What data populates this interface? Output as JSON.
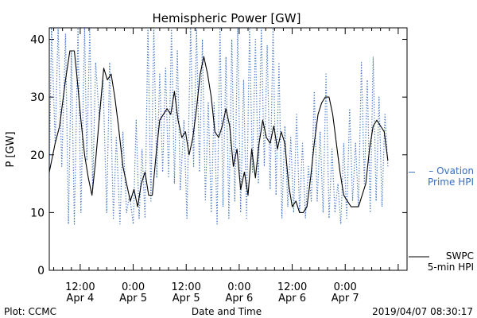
{
  "chart_data": {
    "type": "line",
    "title": "Hemispheric Power [GW]",
    "xlabel": "Date and Time",
    "ylabel": "P [GW]",
    "ylim": [
      0,
      42
    ],
    "xlim": [
      "2019-04-04 05:00",
      "2019-04-07 14:00"
    ],
    "yticks": [
      0,
      10,
      20,
      30,
      40
    ],
    "xticks": [
      {
        "at": "2019-04-04 12:00",
        "time": "12:00",
        "date": "Apr 4"
      },
      {
        "at": "2019-04-05 00:00",
        "time": "0:00",
        "date": "Apr 5"
      },
      {
        "at": "2019-04-05 12:00",
        "time": "12:00",
        "date": "Apr 5"
      },
      {
        "at": "2019-04-06 00:00",
        "time": "0:00",
        "date": "Apr 6"
      },
      {
        "at": "2019-04-06 12:00",
        "time": "12:00",
        "date": "Apr 6"
      },
      {
        "at": "2019-04-07 00:00",
        "time": "0:00",
        "date": "Apr 7"
      }
    ],
    "grid": false,
    "legend_position": "right",
    "footer_left": "Plot: CCMC",
    "footer_right": "2019/04/07 08:30:17",
    "series": [
      {
        "name": "SWPC 5-min HPI",
        "legend_lines": [
          "SWPC",
          "5-min HPI"
        ],
        "color": "#000000",
        "style": "solid",
        "points": [
          [
            "2019-04-04 05:00",
            17
          ],
          [
            "2019-04-04 06:20",
            22
          ],
          [
            "2019-04-04 07:20",
            25
          ],
          [
            "2019-04-04 08:40",
            33
          ],
          [
            "2019-04-04 09:40",
            38
          ],
          [
            "2019-04-04 10:40",
            38
          ],
          [
            "2019-04-04 11:20",
            33
          ],
          [
            "2019-04-04 12:10",
            26
          ],
          [
            "2019-04-04 13:00",
            20
          ],
          [
            "2019-04-04 13:50",
            16
          ],
          [
            "2019-04-04 14:40",
            13
          ],
          [
            "2019-04-04 15:30",
            19
          ],
          [
            "2019-04-04 16:30",
            28
          ],
          [
            "2019-04-04 17:20",
            35
          ],
          [
            "2019-04-04 18:10",
            33
          ],
          [
            "2019-04-04 19:00",
            34
          ],
          [
            "2019-04-04 19:50",
            30
          ],
          [
            "2019-04-04 20:40",
            25
          ],
          [
            "2019-04-04 21:40",
            18
          ],
          [
            "2019-04-04 22:30",
            15
          ],
          [
            "2019-04-04 23:20",
            12
          ],
          [
            "2019-04-05 00:10",
            14
          ],
          [
            "2019-04-05 01:00",
            11
          ],
          [
            "2019-04-05 01:50",
            15
          ],
          [
            "2019-04-05 02:40",
            17
          ],
          [
            "2019-04-05 03:30",
            13
          ],
          [
            "2019-04-05 04:20",
            13
          ],
          [
            "2019-04-05 05:10",
            20
          ],
          [
            "2019-04-05 06:00",
            26
          ],
          [
            "2019-04-05 06:50",
            27
          ],
          [
            "2019-04-05 07:40",
            28
          ],
          [
            "2019-04-05 08:30",
            27
          ],
          [
            "2019-04-05 09:20",
            31
          ],
          [
            "2019-04-05 10:10",
            26
          ],
          [
            "2019-04-05 11:00",
            23
          ],
          [
            "2019-04-05 11:50",
            24
          ],
          [
            "2019-04-05 12:40",
            20
          ],
          [
            "2019-04-05 13:30",
            23
          ],
          [
            "2019-04-05 14:20",
            28
          ],
          [
            "2019-04-05 15:10",
            34
          ],
          [
            "2019-04-05 16:00",
            37
          ],
          [
            "2019-04-05 16:50",
            34
          ],
          [
            "2019-04-05 17:40",
            30
          ],
          [
            "2019-04-05 18:30",
            24
          ],
          [
            "2019-04-05 19:20",
            23
          ],
          [
            "2019-04-05 20:10",
            25
          ],
          [
            "2019-04-05 21:00",
            28
          ],
          [
            "2019-04-05 21:50",
            25
          ],
          [
            "2019-04-05 22:40",
            18
          ],
          [
            "2019-04-05 23:30",
            21
          ],
          [
            "2019-04-06 00:20",
            14
          ],
          [
            "2019-04-06 01:10",
            17
          ],
          [
            "2019-04-06 02:00",
            13
          ],
          [
            "2019-04-06 02:50",
            21
          ],
          [
            "2019-04-06 03:40",
            16
          ],
          [
            "2019-04-06 04:30",
            22
          ],
          [
            "2019-04-06 05:20",
            26
          ],
          [
            "2019-04-06 06:10",
            23
          ],
          [
            "2019-04-06 07:00",
            22
          ],
          [
            "2019-04-06 07:50",
            25
          ],
          [
            "2019-04-06 08:40",
            21
          ],
          [
            "2019-04-06 09:30",
            24
          ],
          [
            "2019-04-06 10:20",
            22
          ],
          [
            "2019-04-06 11:10",
            15
          ],
          [
            "2019-04-06 12:00",
            11
          ],
          [
            "2019-04-06 12:50",
            12
          ],
          [
            "2019-04-06 13:40",
            10
          ],
          [
            "2019-04-06 14:30",
            10
          ],
          [
            "2019-04-06 15:20",
            11
          ],
          [
            "2019-04-06 16:10",
            16
          ],
          [
            "2019-04-06 17:00",
            22
          ],
          [
            "2019-04-06 17:50",
            27
          ],
          [
            "2019-04-06 18:40",
            29
          ],
          [
            "2019-04-06 19:30",
            30
          ],
          [
            "2019-04-06 20:20",
            30
          ],
          [
            "2019-04-06 21:10",
            27
          ],
          [
            "2019-04-06 22:00",
            22
          ],
          [
            "2019-04-06 22:50",
            17
          ],
          [
            "2019-04-06 23:40",
            13
          ],
          [
            "2019-04-07 00:30",
            12
          ],
          [
            "2019-04-07 01:20",
            11
          ],
          [
            "2019-04-07 02:10",
            11
          ],
          [
            "2019-04-07 03:00",
            11
          ],
          [
            "2019-04-07 03:50",
            13
          ],
          [
            "2019-04-07 04:40",
            15
          ],
          [
            "2019-04-07 05:30",
            21
          ],
          [
            "2019-04-07 06:20",
            25
          ],
          [
            "2019-04-07 07:10",
            26
          ],
          [
            "2019-04-07 08:00",
            25
          ],
          [
            "2019-04-07 08:50",
            24
          ],
          [
            "2019-04-07 09:40",
            19
          ]
        ]
      },
      {
        "name": "Ovation Prime HPI",
        "legend_lines": [
          "– Ovation",
          "Prime HPI"
        ],
        "color": "#3a6fc0",
        "style": "dotted",
        "points": [
          [
            "2019-04-04 05:00",
            16
          ],
          [
            "2019-04-04 05:30",
            42
          ],
          [
            "2019-04-04 06:20",
            22
          ],
          [
            "2019-04-04 07:00",
            42
          ],
          [
            "2019-04-04 07:50",
            18
          ],
          [
            "2019-04-04 08:40",
            41
          ],
          [
            "2019-04-04 09:20",
            8
          ],
          [
            "2019-04-04 10:00",
            38
          ],
          [
            "2019-04-04 10:40",
            8
          ],
          [
            "2019-04-04 11:30",
            42
          ],
          [
            "2019-04-04 12:10",
            10
          ],
          [
            "2019-04-04 13:00",
            42
          ],
          [
            "2019-04-04 13:30",
            19
          ],
          [
            "2019-04-04 14:10",
            42
          ],
          [
            "2019-04-04 14:50",
            14
          ],
          [
            "2019-04-04 15:30",
            36
          ],
          [
            "2019-04-04 16:20",
            26
          ],
          [
            "2019-04-04 17:10",
            33
          ],
          [
            "2019-04-04 18:00",
            10
          ],
          [
            "2019-04-04 18:40",
            36
          ],
          [
            "2019-04-04 19:30",
            9
          ],
          [
            "2019-04-04 20:10",
            23
          ],
          [
            "2019-04-04 21:00",
            8
          ],
          [
            "2019-04-04 21:40",
            24
          ],
          [
            "2019-04-04 22:30",
            10
          ],
          [
            "2019-04-04 23:10",
            13
          ],
          [
            "2019-04-05 00:00",
            8
          ],
          [
            "2019-04-05 00:40",
            26
          ],
          [
            "2019-04-05 01:20",
            9
          ],
          [
            "2019-04-05 02:00",
            21
          ],
          [
            "2019-04-05 02:40",
            9
          ],
          [
            "2019-04-05 03:20",
            42
          ],
          [
            "2019-04-05 04:00",
            12
          ],
          [
            "2019-04-05 04:40",
            42
          ],
          [
            "2019-04-05 05:20",
            16
          ],
          [
            "2019-04-05 06:00",
            34
          ],
          [
            "2019-04-05 06:40",
            17
          ],
          [
            "2019-04-05 07:20",
            35
          ],
          [
            "2019-04-05 08:00",
            16
          ],
          [
            "2019-04-05 08:40",
            42
          ],
          [
            "2019-04-05 09:20",
            15
          ],
          [
            "2019-04-05 10:00",
            38
          ],
          [
            "2019-04-05 10:40",
            14
          ],
          [
            "2019-04-05 11:30",
            26
          ],
          [
            "2019-04-05 12:10",
            9
          ],
          [
            "2019-04-05 13:00",
            42
          ],
          [
            "2019-04-05 13:40",
            18
          ],
          [
            "2019-04-05 14:20",
            42
          ],
          [
            "2019-04-05 15:00",
            17
          ],
          [
            "2019-04-05 15:40",
            40
          ],
          [
            "2019-04-05 16:20",
            12
          ],
          [
            "2019-04-05 17:00",
            29
          ],
          [
            "2019-04-05 17:40",
            10
          ],
          [
            "2019-04-05 18:20",
            29
          ],
          [
            "2019-04-05 19:00",
            8
          ],
          [
            "2019-04-05 19:40",
            42
          ],
          [
            "2019-04-05 20:20",
            11
          ],
          [
            "2019-04-05 21:00",
            37
          ],
          [
            "2019-04-05 21:40",
            9
          ],
          [
            "2019-04-05 22:20",
            40
          ],
          [
            "2019-04-05 23:00",
            12
          ],
          [
            "2019-04-05 23:40",
            42
          ],
          [
            "2019-04-06 00:20",
            10
          ],
          [
            "2019-04-06 01:00",
            33
          ],
          [
            "2019-04-06 01:40",
            9
          ],
          [
            "2019-04-06 02:20",
            42
          ],
          [
            "2019-04-06 03:00",
            17
          ],
          [
            "2019-04-06 03:40",
            40
          ],
          [
            "2019-04-06 04:20",
            15
          ],
          [
            "2019-04-06 05:00",
            42
          ],
          [
            "2019-04-06 05:40",
            18
          ],
          [
            "2019-04-06 06:20",
            39
          ],
          [
            "2019-04-06 07:00",
            14
          ],
          [
            "2019-04-06 07:40",
            42
          ],
          [
            "2019-04-06 08:20",
            13
          ],
          [
            "2019-04-06 09:00",
            36
          ],
          [
            "2019-04-06 09:40",
            9
          ],
          [
            "2019-04-06 10:20",
            25
          ],
          [
            "2019-04-06 11:00",
            11
          ],
          [
            "2019-04-06 11:40",
            23
          ],
          [
            "2019-04-06 12:20",
            10
          ],
          [
            "2019-04-06 13:00",
            27
          ],
          [
            "2019-04-06 13:40",
            10
          ],
          [
            "2019-04-06 14:20",
            22
          ],
          [
            "2019-04-06 15:00",
            9
          ],
          [
            "2019-04-06 15:40",
            18
          ],
          [
            "2019-04-06 16:20",
            12
          ],
          [
            "2019-04-06 17:00",
            31
          ],
          [
            "2019-04-06 17:40",
            12
          ],
          [
            "2019-04-06 18:20",
            24
          ],
          [
            "2019-04-06 19:00",
            10
          ],
          [
            "2019-04-06 19:40",
            34
          ],
          [
            "2019-04-06 20:20",
            9
          ],
          [
            "2019-04-06 21:00",
            21
          ],
          [
            "2019-04-06 21:40",
            10
          ],
          [
            "2019-04-06 22:20",
            15
          ],
          [
            "2019-04-06 23:00",
            8
          ],
          [
            "2019-04-06 23:40",
            22
          ],
          [
            "2019-04-07 00:20",
            9
          ],
          [
            "2019-04-07 01:00",
            28
          ],
          [
            "2019-04-07 01:40",
            12
          ],
          [
            "2019-04-07 02:20",
            22
          ],
          [
            "2019-04-07 03:00",
            11
          ],
          [
            "2019-04-07 03:40",
            36
          ],
          [
            "2019-04-07 04:20",
            15
          ],
          [
            "2019-04-07 05:00",
            33
          ],
          [
            "2019-04-07 05:40",
            10
          ],
          [
            "2019-04-07 06:20",
            37
          ],
          [
            "2019-04-07 07:00",
            12
          ],
          [
            "2019-04-07 07:40",
            30
          ],
          [
            "2019-04-07 08:20",
            11
          ],
          [
            "2019-04-07 09:00",
            27
          ],
          [
            "2019-04-07 09:40",
            18
          ]
        ]
      }
    ]
  }
}
